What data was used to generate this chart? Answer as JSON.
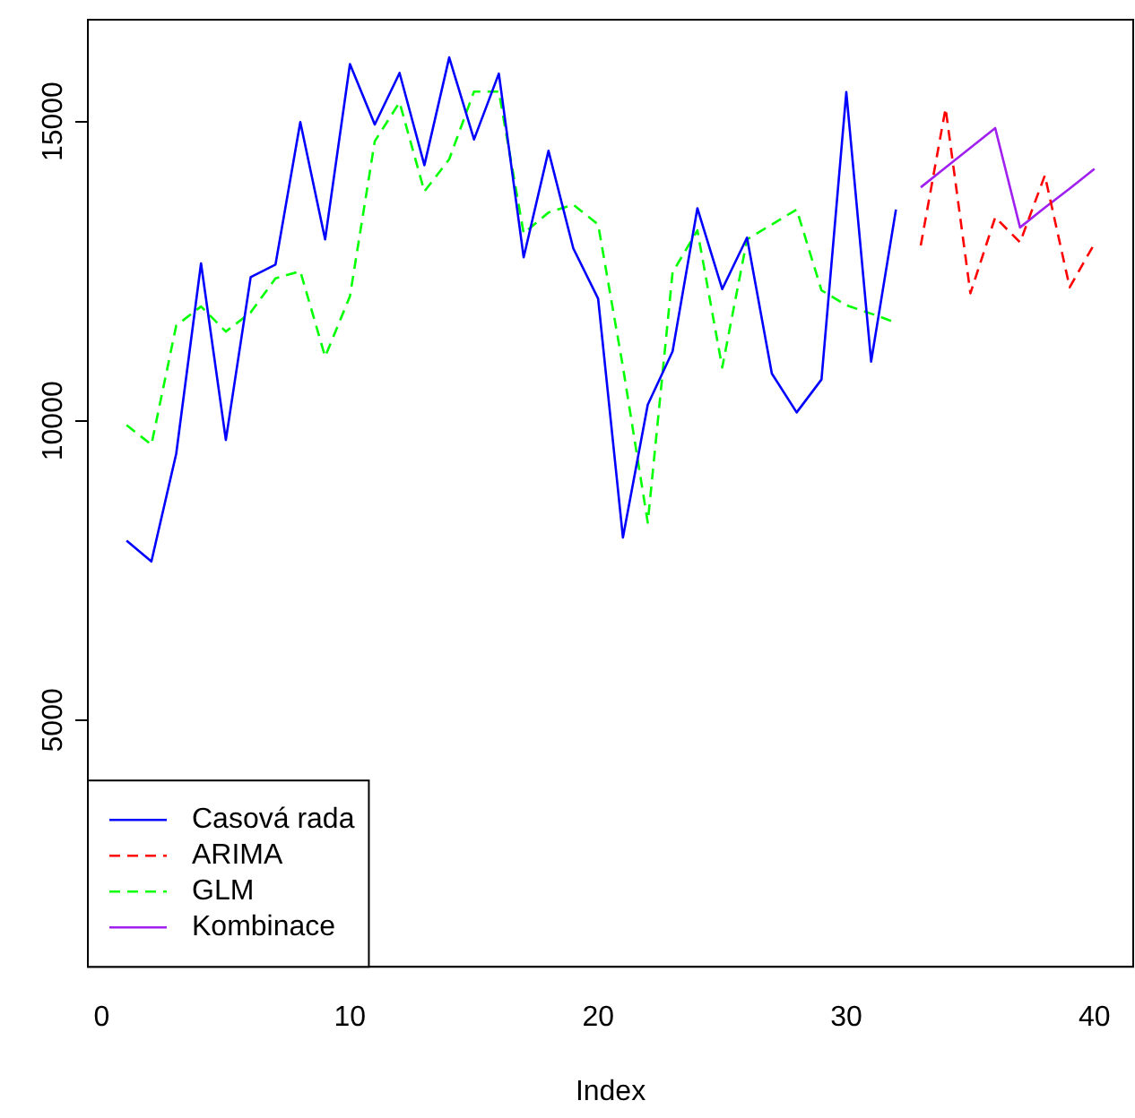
{
  "chart_data": {
    "type": "line",
    "xlabel": "Index",
    "xlim": [
      -0.56,
      41.56
    ],
    "xticks": [
      0,
      10,
      20,
      30,
      40
    ],
    "ylim": [
      880,
      16700
    ],
    "yticks": [
      5000,
      10000,
      15000
    ],
    "grid": false,
    "legend": "bottom left",
    "marker": "none",
    "series": [
      {
        "name": "Casová rada",
        "color": "#0000ff",
        "line_style": "solid",
        "x": [
          1,
          2,
          3,
          4,
          5,
          6,
          7,
          8,
          9,
          10,
          11,
          12,
          13,
          14,
          15,
          16,
          17,
          18,
          19,
          20,
          21,
          22,
          23,
          24,
          25,
          26,
          27,
          28,
          29,
          30,
          31,
          32
        ],
        "values": [
          8000,
          7650,
          9450,
          12630,
          9680,
          12400,
          12610,
          14990,
          13030,
          15960,
          14950,
          15810,
          14270,
          16070,
          14700,
          15800,
          12730,
          14510,
          12880,
          12040,
          8050,
          10270,
          11160,
          13550,
          12200,
          13060,
          10790,
          10140,
          10690,
          15490,
          10990,
          13530
        ]
      },
      {
        "name": "ARIMA",
        "color": "#ff0000",
        "line_style": "dashed",
        "x": [
          33,
          34,
          35,
          36,
          37,
          38,
          39,
          40
        ],
        "values": [
          12930,
          15220,
          12130,
          13400,
          12980,
          14100,
          12230,
          12960
        ]
      },
      {
        "name": "GLM",
        "color": "#00ff00",
        "line_style": "dashed",
        "x": [
          1,
          2,
          3,
          4,
          5,
          6,
          7,
          8,
          9,
          10,
          11,
          12,
          13,
          14,
          15,
          16,
          17,
          18,
          19,
          20,
          21,
          22,
          23,
          24,
          25,
          26,
          27,
          28,
          29,
          30,
          31,
          32
        ],
        "values": [
          9930,
          9600,
          11590,
          11910,
          11490,
          11810,
          12380,
          12500,
          11070,
          12080,
          14670,
          15320,
          13830,
          14370,
          15500,
          15500,
          13130,
          13480,
          13610,
          13280,
          10900,
          8300,
          12480,
          13180,
          10890,
          13030,
          13280,
          13530,
          12180,
          11930,
          11790,
          11640
        ]
      },
      {
        "name": "Kombinace",
        "color": "#a020f0",
        "line_style": "solid",
        "x": [
          33,
          34,
          35,
          36,
          37,
          38,
          39,
          40
        ],
        "values": [
          13900,
          14230,
          14560,
          14890,
          13230,
          13560,
          13880,
          14210
        ]
      }
    ]
  }
}
